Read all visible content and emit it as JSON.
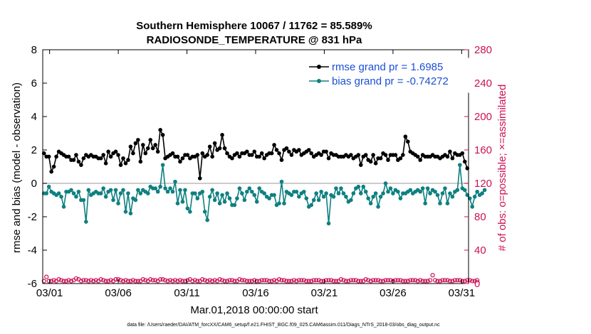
{
  "chart_data": {
    "type": "line",
    "title": "Southern Hemisphere 10067 / 11762 = 85.589%",
    "subtitle": "RADIOSONDE_TEMPERATURE @ 831 hPa",
    "xlabel": "Mar.01,2018 00:00:00 start",
    "ylabel": "rmse and bias (model - observation)",
    "ylabel_right": "# of obs: o=possible; ×=assimilated",
    "footer": "data file: /Users/raeder/DAI/ATM_forcXX/CAM6_setup/f.e21.FHIST_BGC.f09_025.CAM6assim.011/Diags_NTrS_2018-03/obs_diag_output.nc",
    "xlim": [
      0.5,
      31.5
    ],
    "ylim": [
      -6,
      8
    ],
    "ylim_right": [
      0,
      280
    ],
    "yticks": [
      -6,
      -4,
      -2,
      0,
      2,
      4,
      6,
      8
    ],
    "yticks_right": [
      0,
      40,
      80,
      120,
      160,
      200,
      240,
      280
    ],
    "xticks": [
      {
        "value": 1,
        "label": "03/01"
      },
      {
        "value": 6,
        "label": "03/06"
      },
      {
        "value": 11,
        "label": "03/11"
      },
      {
        "value": 16,
        "label": "03/16"
      },
      {
        "value": 21,
        "label": "03/21"
      },
      {
        "value": 26,
        "label": "03/26"
      },
      {
        "value": 31,
        "label": "03/31"
      }
    ],
    "legend": [
      {
        "name": "rmse grand pr = 1.6985",
        "color": "#000000"
      },
      {
        "name": "bias grand pr = -0.74272",
        "color": "#0f8080"
      }
    ],
    "colors": {
      "rmse": "#000000",
      "bias": "#0f8080",
      "obs": "#cc1155",
      "zero_line": "#bbbbbb"
    },
    "series": [
      {
        "name": "rmse",
        "axis": "left",
        "values": [
          1.8,
          1.6,
          1.6,
          0.7,
          1.0,
          1.6,
          1.9,
          1.8,
          1.7,
          1.6,
          1.6,
          1.4,
          1.4,
          1.7,
          1.3,
          1.1,
          1.5,
          1.7,
          1.6,
          1.7,
          1.6,
          1.6,
          1.5,
          1.5,
          1.7,
          1.2,
          1.9,
          1.6,
          1.8,
          1.9,
          1.7,
          1.1,
          1.5,
          1.2,
          1.4,
          2.2,
          1.8,
          2.4,
          2.6,
          1.3,
          2.3,
          1.8,
          2.1,
          2.6,
          2.1,
          2.3,
          1.9,
          3.2,
          2.9,
          1.5,
          1.6,
          1.7,
          1.8,
          1.6,
          1.6,
          1.3,
          1.5,
          1.7,
          1.7,
          1.5,
          1.6,
          1.6,
          1.7,
          0.3,
          1.8,
          1.6,
          1.7,
          2.2,
          1.6,
          2.4,
          2.0,
          2.1,
          2.9,
          2.1,
          1.8,
          1.6,
          1.5,
          1.7,
          1.8,
          1.6,
          1.8,
          1.8,
          1.9,
          1.7,
          1.7,
          1.9,
          1.6,
          1.6,
          1.8,
          1.5,
          1.7,
          1.8,
          1.8,
          2.3,
          2.0,
          1.8,
          1.4,
          2.0,
          2.1,
          1.9,
          1.7,
          2.0,
          1.9,
          2.0,
          1.7,
          1.8,
          1.9,
          2.0,
          1.8,
          1.6,
          1.7,
          1.8,
          1.7,
          1.9,
          1.9,
          1.5,
          1.8,
          1.7,
          1.7,
          1.6,
          1.6,
          1.6,
          1.7,
          1.6,
          1.7,
          1.5,
          1.6,
          1.7,
          1.1,
          1.6,
          1.7,
          1.4,
          1.3,
          1.7,
          1.2,
          1.5,
          1.5,
          1.8,
          1.7,
          1.4,
          1.7,
          1.7,
          1.7,
          1.4,
          1.5,
          1.7,
          2.8,
          2.5,
          1.9,
          1.8,
          1.7,
          1.6,
          1.4,
          1.7,
          1.6,
          1.6,
          1.6,
          1.7,
          1.6,
          1.6,
          1.5,
          1.6,
          1.7,
          1.6,
          1.9,
          1.5,
          1.8,
          1.7,
          1.7,
          1.8,
          1.3,
          0.9
        ]
      },
      {
        "name": "bias",
        "axis": "left",
        "values": [
          -0.6,
          -0.6,
          -0.2,
          -0.5,
          -0.6,
          -0.7,
          -0.6,
          -0.8,
          -1.4,
          -0.5,
          -0.5,
          -0.4,
          -0.6,
          -0.8,
          -0.5,
          -1.0,
          -1.0,
          -2.3,
          -0.4,
          -0.7,
          -0.6,
          -0.5,
          -0.6,
          -0.6,
          -0.3,
          -0.8,
          -0.5,
          -0.4,
          -1.0,
          -0.4,
          -1.2,
          -0.6,
          -0.4,
          -1.7,
          -0.6,
          -1.8,
          -0.9,
          -1.0,
          -0.4,
          -0.6,
          -0.4,
          -0.5,
          -0.6,
          -0.2,
          -0.3,
          -0.3,
          -0.5,
          -0.2,
          1.1,
          -0.3,
          -0.5,
          -0.3,
          -0.5,
          0.1,
          -1.2,
          -0.4,
          -1.1,
          -0.4,
          -1.5,
          -1.7,
          -0.6,
          -0.6,
          -0.9,
          -0.6,
          -0.5,
          -1.7,
          -2.2,
          -0.8,
          -0.4,
          -1.0,
          -0.6,
          -1.2,
          -0.7,
          -1.1,
          -0.6,
          -0.9,
          -1.3,
          -1.3,
          -0.9,
          -0.3,
          -0.6,
          -1.0,
          -0.5,
          -0.3,
          -0.5,
          -0.7,
          -1.1,
          -0.3,
          -0.5,
          -0.6,
          -0.8,
          -0.9,
          -0.7,
          -0.7,
          -1.3,
          -1.2,
          0.1,
          -1.2,
          -0.5,
          -0.6,
          -0.7,
          -0.5,
          -0.5,
          -0.8,
          -0.6,
          -0.5,
          -0.9,
          -1.4,
          -1.3,
          -1.0,
          -0.6,
          -1.0,
          -0.5,
          -0.8,
          -0.6,
          -2.4,
          -0.7,
          -0.8,
          -0.3,
          -0.6,
          -0.3,
          -0.6,
          -0.8,
          -1.1,
          -1.0,
          -0.6,
          -0.3,
          -0.2,
          -0.6,
          -0.2,
          -0.5,
          -0.9,
          -1.2,
          -0.8,
          -0.6,
          -1.4,
          -0.8,
          -0.6,
          0.0,
          -0.5,
          -0.3,
          -0.6,
          -0.4,
          -0.5,
          -0.9,
          -0.6,
          -0.6,
          -0.5,
          -0.4,
          -0.6,
          -0.5,
          -0.4,
          -0.5,
          -0.3,
          -1.2,
          -0.3,
          -0.6,
          -0.4,
          -0.5,
          -0.7,
          -1.2,
          -0.6,
          -0.3,
          -1.2,
          -0.6,
          -0.8,
          -0.5,
          -0.4,
          1.1,
          -0.3,
          -0.4,
          -0.7,
          -0.9,
          -1.4,
          -0.8,
          -0.5,
          -0.7,
          -0.6,
          -0.4
        ]
      },
      {
        "name": "obs_possible",
        "axis": "right",
        "marker": "o",
        "values": [
          3,
          8,
          3,
          3,
          4,
          3,
          5,
          4,
          3,
          3,
          4,
          3,
          4,
          6,
          5,
          3,
          4,
          4,
          3,
          4,
          3,
          4,
          3,
          5,
          4,
          3,
          3,
          4,
          3,
          5,
          5,
          4,
          3,
          4,
          3,
          3,
          4,
          3,
          3,
          3,
          5,
          4,
          3,
          5,
          4,
          4,
          3,
          5,
          5,
          4,
          3,
          4,
          3,
          4,
          3,
          4,
          3,
          3,
          4,
          5,
          3,
          4,
          3,
          3,
          5,
          4,
          3,
          4,
          3,
          4,
          3,
          5,
          4,
          3,
          3,
          4,
          4,
          3,
          3,
          5,
          4,
          4,
          3,
          3,
          3,
          4,
          3,
          3,
          4,
          4,
          4,
          3,
          3,
          4,
          3,
          5,
          4,
          4,
          3,
          3,
          3,
          4,
          3,
          4,
          4,
          4,
          3,
          3,
          3,
          4,
          4,
          4,
          3,
          3,
          4,
          4,
          4,
          3,
          3,
          3,
          5,
          4,
          3,
          3,
          4,
          4,
          4,
          3,
          3,
          3,
          5,
          4,
          3,
          4,
          4,
          4,
          3,
          3,
          4,
          4,
          4,
          3,
          4,
          4,
          4,
          3,
          3,
          3,
          4,
          4,
          4,
          3,
          4,
          3,
          3,
          3,
          4,
          10,
          4,
          3,
          3,
          4,
          4,
          4,
          3,
          3,
          4,
          4,
          4,
          3,
          3,
          4,
          4,
          3,
          3,
          4
        ]
      }
    ]
  }
}
